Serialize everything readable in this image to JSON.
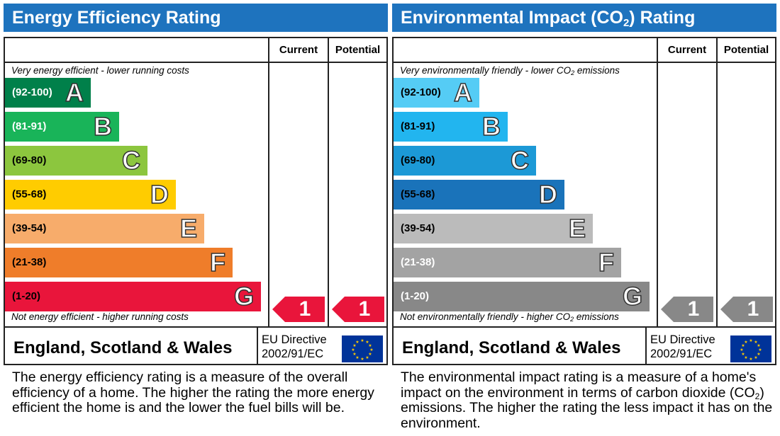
{
  "colors": {
    "title_bar": "#1e73be",
    "energy_bands": [
      "#00804a",
      "#19b459",
      "#8cc63e",
      "#ffcc00",
      "#f7ac6b",
      "#ef7d2a",
      "#e9153b"
    ],
    "environmental_bands": [
      "#55ccf5",
      "#22b5ef",
      "#1c99d6",
      "#1a73ba",
      "#bbbbbb",
      "#a3a3a3",
      "#888888"
    ],
    "energy_arrow": "#e9153b",
    "environmental_arrow": "#888888"
  },
  "energy": {
    "title": "Energy Efficiency Rating",
    "col_current": "Current",
    "col_potential": "Potential",
    "top_note": "Very energy efficient - lower running costs",
    "bottom_note": "Not energy efficient - higher running costs",
    "bands": [
      {
        "range": "(92-100)",
        "letter": "A"
      },
      {
        "range": "(81-91)",
        "letter": "B"
      },
      {
        "range": "(69-80)",
        "letter": "C"
      },
      {
        "range": "(55-68)",
        "letter": "D"
      },
      {
        "range": "(39-54)",
        "letter": "E"
      },
      {
        "range": "(21-38)",
        "letter": "F"
      },
      {
        "range": "(1-20)",
        "letter": "G"
      }
    ],
    "current_rating": "1",
    "potential_rating": "1",
    "rating_band": "G",
    "country": "England, Scotland & Wales",
    "directive_line1": "EU Directive",
    "directive_line2": "2002/91/EC",
    "description": "The energy efficiency rating is a measure of the overall efficiency of a home. The higher the rating the more energy efficient the home is and the lower the fuel bills will be."
  },
  "environmental": {
    "title_pre": "Environmental Impact (CO",
    "title_sub": "2",
    "title_post": ") Rating",
    "col_current": "Current",
    "col_potential": "Potential",
    "top_note_pre": "Very environmentally friendly - lower CO",
    "top_note_sub": "2",
    "top_note_post": " emissions",
    "bottom_note_pre": "Not environmentally friendly - higher CO",
    "bottom_note_sub": "2",
    "bottom_note_post": " emissions",
    "bands": [
      {
        "range": "(92-100)",
        "letter": "A"
      },
      {
        "range": "(81-91)",
        "letter": "B"
      },
      {
        "range": "(69-80)",
        "letter": "C"
      },
      {
        "range": "(55-68)",
        "letter": "D"
      },
      {
        "range": "(39-54)",
        "letter": "E"
      },
      {
        "range": "(21-38)",
        "letter": "F"
      },
      {
        "range": "(1-20)",
        "letter": "G"
      }
    ],
    "current_rating": "1",
    "potential_rating": "1",
    "rating_band": "G",
    "country": "England, Scotland & Wales",
    "directive_line1": "EU Directive",
    "directive_line2": "2002/91/EC",
    "description_pre": "The environmental impact rating is a measure of a home's impact on the environment in terms of carbon dioxide (CO",
    "description_sub": "2",
    "description_post": ") emissions. The higher the rating the less impact it has on the environment."
  }
}
